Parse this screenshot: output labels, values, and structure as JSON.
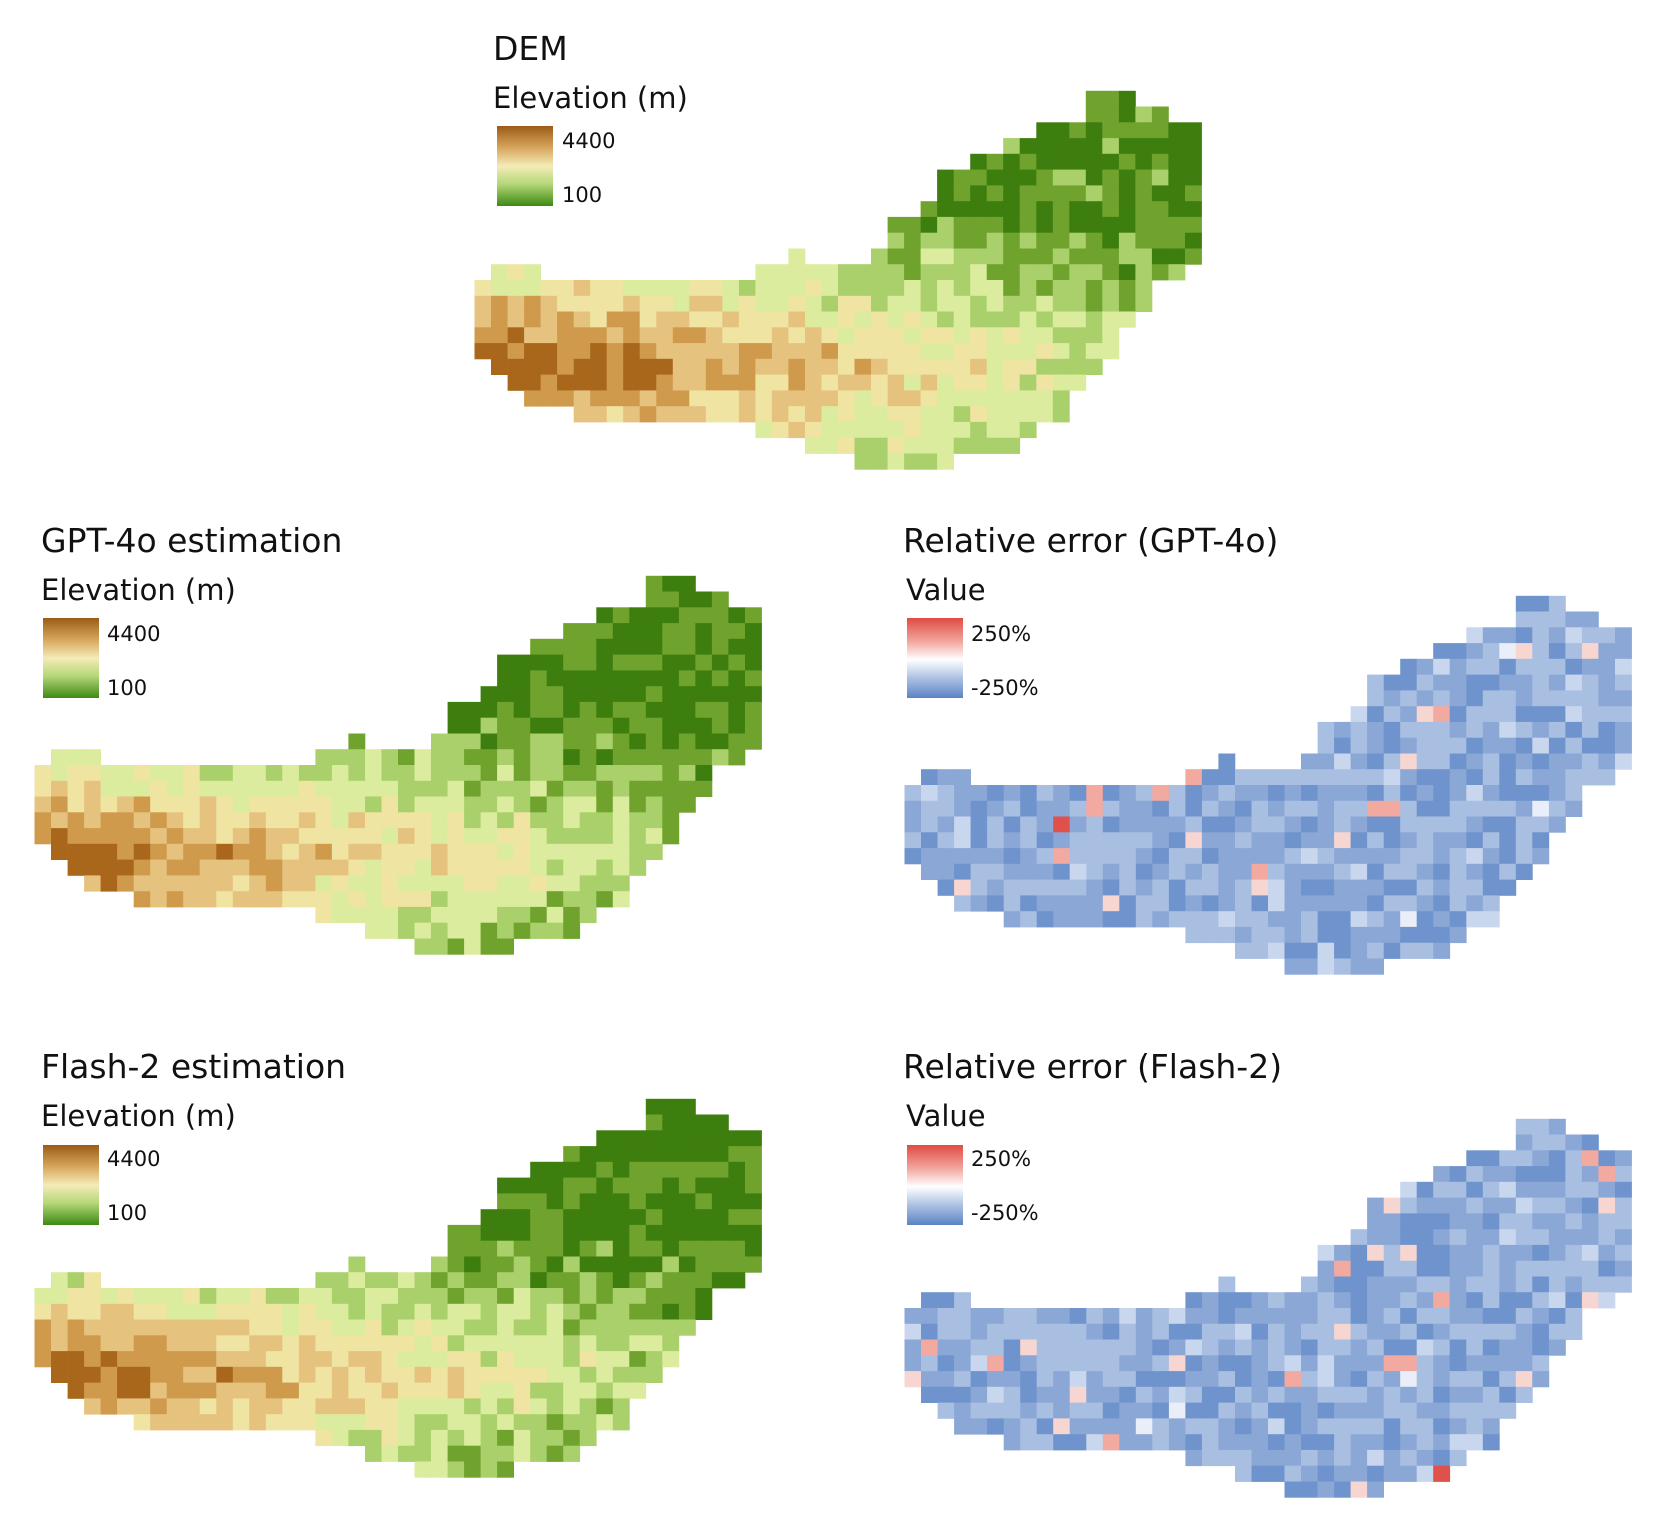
{
  "panels": [
    {
      "id": "dem",
      "title": "DEM",
      "legend_title": "Elevation (m)",
      "legend_max": "4400",
      "legend_min": "100",
      "colormap": "elevation",
      "map_variant": "dem"
    },
    {
      "id": "gpt4o",
      "title": "GPT-4o estimation",
      "legend_title": "Elevation (m)",
      "legend_max": "4400",
      "legend_min": "100",
      "colormap": "elevation",
      "map_variant": "estimate"
    },
    {
      "id": "gpt4o-error",
      "title": "Relative error (GPT-4o)",
      "legend_title": "Value",
      "legend_max": "250%",
      "legend_min": "-250%",
      "colormap": "diverging",
      "map_variant": "error"
    },
    {
      "id": "flash2",
      "title": "Flash-2 estimation",
      "legend_title": "Elevation (m)",
      "legend_max": "4400",
      "legend_min": "100",
      "colormap": "elevation",
      "map_variant": "estimate"
    },
    {
      "id": "flash2-error",
      "title": "Relative error (Flash-2)",
      "legend_title": "Value",
      "legend_max": "250%",
      "legend_min": "-250%",
      "colormap": "diverging",
      "map_variant": "error"
    }
  ],
  "colors": {
    "elevation": [
      "#3d7e0f",
      "#6fa32d",
      "#a9d06a",
      "#dcec9e",
      "#f0e4a2",
      "#e6c27f",
      "#d09a4d",
      "#a9671b"
    ],
    "diverging": [
      "#6f93cc",
      "#8aa7d6",
      "#a9bfe2",
      "#c9d7ee",
      "#e9eef8",
      "#f7d6d2",
      "#f2a9a0",
      "#e0514b"
    ]
  }
}
